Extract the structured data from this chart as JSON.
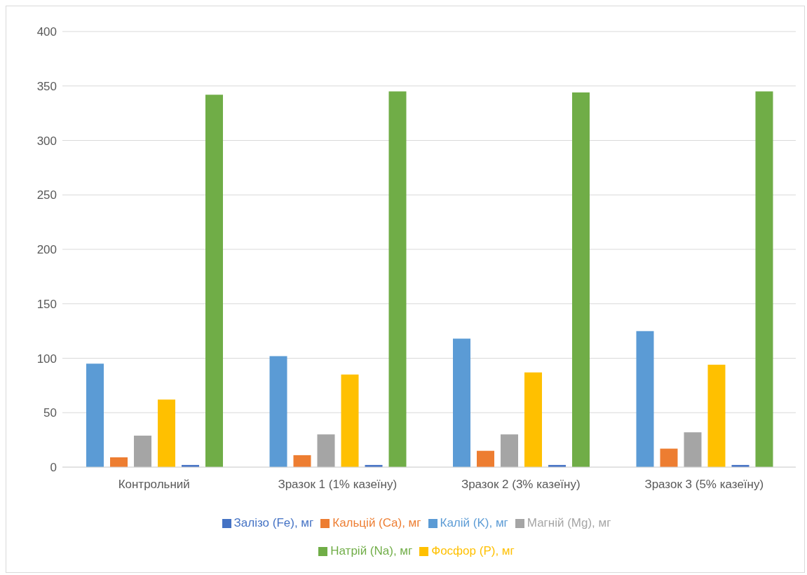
{
  "chart_data": {
    "type": "bar",
    "categories": [
      "Контрольний",
      "Зразок 1 (1% казеїну)",
      "Зразок 2 (3% казеїну)",
      "Зразок 3 (5% казеїну)"
    ],
    "series": [
      {
        "name": "Калій (K), мг",
        "color": "#5b9bd5",
        "values": [
          95,
          102,
          118,
          125
        ]
      },
      {
        "name": "Кальцій (Ca), мг",
        "color": "#ed7d31",
        "values": [
          9,
          11,
          15,
          17
        ]
      },
      {
        "name": "Магній (Mg), мг",
        "color": "#a5a5a5",
        "values": [
          29,
          30,
          30,
          32
        ]
      },
      {
        "name": "Фосфор (P), мг",
        "color": "#ffc000",
        "values": [
          62,
          85,
          87,
          94
        ]
      },
      {
        "name": "Залізо (Fe), мг",
        "color": "#4472c4",
        "values": [
          2,
          2,
          2,
          2
        ]
      },
      {
        "name": "Натрій (Na), мг",
        "color": "#70ad47",
        "values": [
          342,
          345,
          344,
          345
        ]
      }
    ],
    "ylim": [
      0,
      400
    ],
    "yticks": [
      0,
      50,
      100,
      150,
      200,
      250,
      300,
      350,
      400
    ],
    "grid": "y",
    "legend": "bottom"
  }
}
